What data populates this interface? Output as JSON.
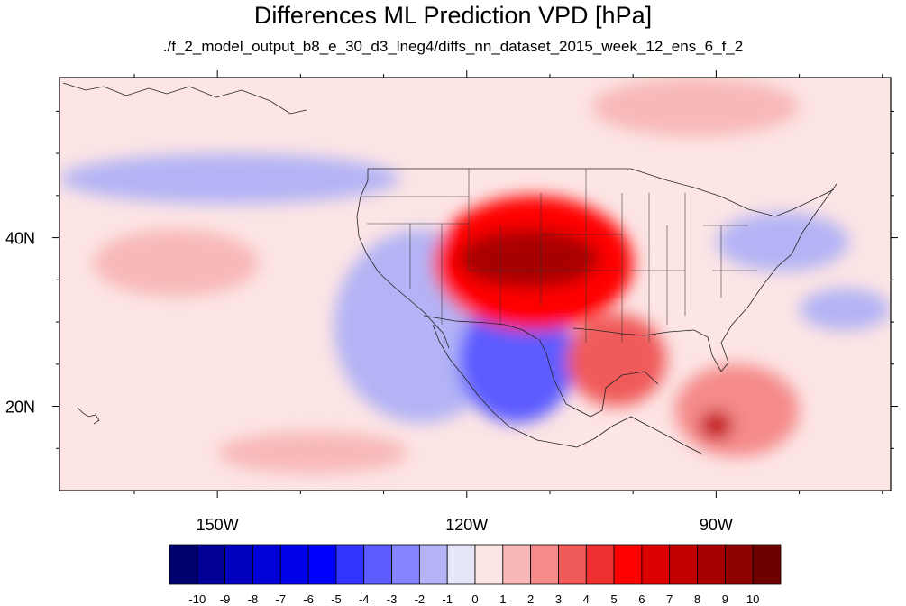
{
  "chart_data": {
    "type": "heatmap",
    "title": "Differences ML Prediction VPD [hPa]",
    "subtitle": "./f_2_model_output_b8_e_30_d3_lneg4/diffs_nn_dataset_2015_week_12_ens_6_f_2",
    "x_range": [
      -169,
      -69
    ],
    "y_range": [
      10,
      59
    ],
    "x_ticks": [
      "150W",
      "120W",
      "90W"
    ],
    "x_tick_values": [
      -150,
      -120,
      -90
    ],
    "y_ticks": [
      "40N",
      "20N"
    ],
    "y_tick_values": [
      40,
      20
    ],
    "colorbar": {
      "labels": [
        "-10",
        "-9",
        "-8",
        "-7",
        "-6",
        "-5",
        "-4",
        "-3",
        "-2",
        "-1",
        "0",
        "1",
        "2",
        "3",
        "4",
        "5",
        "6",
        "7",
        "8",
        "9",
        "10"
      ],
      "colors": [
        "#00006e",
        "#000096",
        "#0000be",
        "#0000d7",
        "#0000eb",
        "#0000ff",
        "#3333ff",
        "#5c5cff",
        "#8585ff",
        "#b3b3f5",
        "#e6e6f9",
        "#fde5e5",
        "#f8b8b8",
        "#f58a8a",
        "#f05a5a",
        "#ec3030",
        "#ff0000",
        "#dc0000",
        "#c20000",
        "#a80000",
        "#8c0000",
        "#6e0000"
      ]
    },
    "regions": [
      {
        "name": "background",
        "lon": [
          -169,
          -69
        ],
        "lat": [
          10,
          59
        ],
        "value": 0.4
      },
      {
        "name": "North Pacific cool band",
        "lon": [
          -169,
          -128
        ],
        "lat": [
          44,
          50
        ],
        "value": -1.2
      },
      {
        "name": "Pacific cool tongue",
        "lon": [
          -136,
          -115
        ],
        "lat": [
          18,
          41
        ],
        "value": -1.5
      },
      {
        "name": "Baja coast dry bias",
        "lon": [
          -121,
          -107
        ],
        "lat": [
          18,
          33
        ],
        "value": -3.5
      },
      {
        "name": "Central Pacific warm",
        "lon": [
          -165,
          -145
        ],
        "lat": [
          33,
          41
        ],
        "value": 1.2
      },
      {
        "name": "Southern Pacific warm",
        "lon": [
          -150,
          -127
        ],
        "lat": [
          12,
          17
        ],
        "value": 1.5
      },
      {
        "name": "Western US",
        "lon": [
          -124,
          -100
        ],
        "lat": [
          29,
          45
        ],
        "value": 5.5
      },
      {
        "name": "Great Basin maximum",
        "lon": [
          -121,
          -104
        ],
        "lat": [
          34,
          41
        ],
        "value": 8
      },
      {
        "name": "Mexico plateau",
        "lon": [
          -108,
          -96
        ],
        "lat": [
          20,
          31
        ],
        "value": 3
      },
      {
        "name": "Central America",
        "lon": [
          -95,
          -80
        ],
        "lat": [
          14,
          25
        ],
        "value": 2.5
      },
      {
        "name": "Guatemala maximum",
        "lon": [
          -92,
          -88
        ],
        "lat": [
          16,
          19.5
        ],
        "value": 7
      },
      {
        "name": "Great Lakes / Appalachians",
        "lon": [
          -90,
          -74
        ],
        "lat": [
          36,
          43
        ],
        "value": -1.6
      },
      {
        "name": "Atlantic cool",
        "lon": [
          -80,
          -69
        ],
        "lat": [
          29,
          34
        ],
        "value": -2
      },
      {
        "name": "Northern Canada warm",
        "lon": [
          -105,
          -80
        ],
        "lat": [
          52,
          59
        ],
        "value": 1
      }
    ],
    "grid": false
  }
}
